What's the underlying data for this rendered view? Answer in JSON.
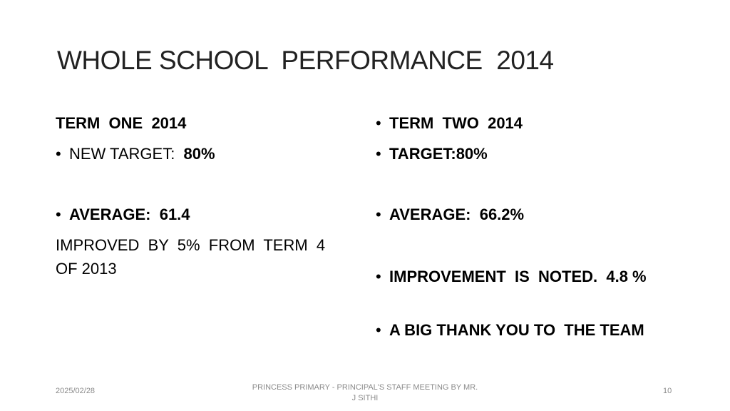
{
  "title": "WHOLE SCHOOL  PERFORMANCE  2014",
  "left": {
    "heading": "TERM  ONE  2014",
    "target_label": "NEW TARGET:  ",
    "target_value": "80%",
    "average": "AVERAGE:  61.4",
    "note": "IMPROVED  BY  5%  FROM  TERM  4  OF 2013"
  },
  "right": {
    "bullets": [
      "TERM  TWO  2014",
      "TARGET:80%",
      "AVERAGE:  66.2%",
      "IMPROVEMENT  IS  NOTED.  4.8 %",
      "A BIG THANK YOU TO  THE TEAM"
    ]
  },
  "footer": {
    "date": "2025/02/28",
    "center": "PRINCESS PRIMARY - PRINCIPAL'S STAFF MEETING BY MR. J SITHI",
    "page": "10"
  }
}
